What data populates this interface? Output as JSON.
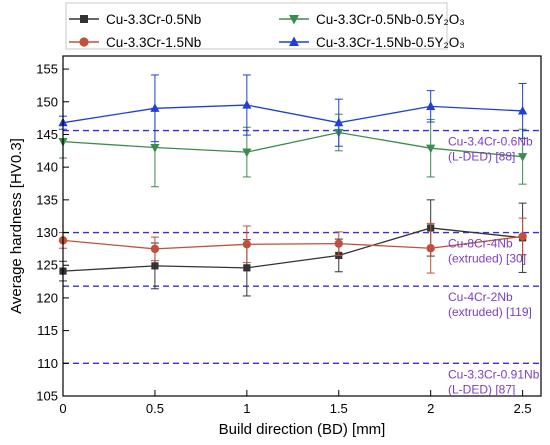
{
  "chart_data": {
    "type": "line",
    "xlabel": "Build direction (BD) [mm]",
    "ylabel": "Average hardness [HV0.3]",
    "xlim": [
      0,
      2.6
    ],
    "ylim": [
      105,
      157
    ],
    "x_ticks": [
      0,
      0.5,
      1,
      1.5,
      2,
      2.5
    ],
    "x_tick_labels": [
      "0",
      "0.5",
      "1",
      "1.5",
      "2",
      "2.5"
    ],
    "y_ticks": [
      105,
      110,
      115,
      120,
      125,
      130,
      135,
      140,
      145,
      150,
      155
    ],
    "legend_position": "top",
    "x": [
      0,
      0.5,
      1,
      1.5,
      2,
      2.5
    ],
    "series": [
      {
        "name": "Cu-3.3Cr-0.5Nb",
        "color": "#333333",
        "marker": "square",
        "values": [
          124.1,
          124.9,
          124.6,
          126.5,
          130.7,
          129.2
        ],
        "errors": [
          1.5,
          3.5,
          4.3,
          2.5,
          4.3,
          5.3
        ]
      },
      {
        "name": "Cu-3.3Cr-1.5Nb",
        "color": "#c0503c",
        "marker": "circle",
        "values": [
          128.8,
          127.5,
          128.2,
          128.3,
          127.6,
          129.4
        ],
        "errors": [
          1.2,
          1.8,
          2.8,
          1.8,
          3.8,
          2.8
        ]
      },
      {
        "name": "Cu-3.3Cr-0.5Nb-0.5Y₂O₃",
        "color": "#3c8c50",
        "marker": "triangle-down",
        "values": [
          143.9,
          143.0,
          142.3,
          145.3,
          142.9,
          141.6
        ],
        "errors": [
          2.5,
          6.0,
          3.8,
          2.8,
          4.4,
          4.2
        ]
      },
      {
        "name": "Cu-3.3Cr-1.5Nb-0.5Y₂O₃",
        "color": "#1f3fd8",
        "marker": "triangle-up",
        "values": [
          146.8,
          149.0,
          149.5,
          146.8,
          149.3,
          148.6
        ],
        "errors": [
          1.0,
          5.1,
          4.6,
          3.6,
          2.4,
          4.2
        ]
      }
    ],
    "reference_lines": [
      {
        "value": 145.6,
        "color": "#3a2de0",
        "label_lines": [
          "Cu-3.4Cr-0.6Nb",
          "(L-DED) [88]"
        ]
      },
      {
        "value": 130.0,
        "color": "#3a2de0",
        "label_lines": [
          "Cu-8Cr-4Nb",
          "(extruded) [30]"
        ]
      },
      {
        "value": 121.8,
        "color": "#3a2de0",
        "label_lines": [
          "Cu-4Cr-2Nb",
          "(extruded) [119]"
        ]
      },
      {
        "value": 110.0,
        "color": "#3a2de0",
        "label_lines": [
          "Cu-3.3Cr-0.91Nb",
          "(L-DED) [87]"
        ]
      }
    ],
    "reference_label_color": "#7b3fc4"
  }
}
